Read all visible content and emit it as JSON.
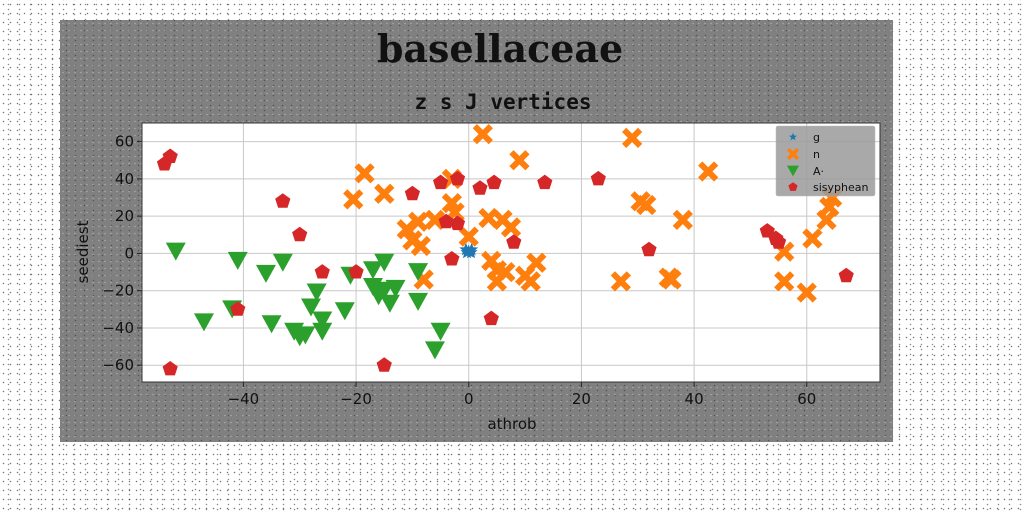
{
  "chart_data": {
    "type": "scatter",
    "suptitle": "basellaceae",
    "title": "z s J vertices",
    "xlabel": "athrob",
    "ylabel": "seediest",
    "xlim": [
      -58,
      73
    ],
    "ylim": [
      -69,
      70
    ],
    "xticks": [
      -40,
      -20,
      0,
      20,
      40,
      60
    ],
    "yticks": [
      -60,
      -40,
      -20,
      0,
      20,
      40,
      60
    ],
    "grid": true,
    "legend_position": "upper right",
    "series": [
      {
        "name": "g",
        "marker": "star",
        "color": "#1f77b4",
        "points": [
          [
            -0.5,
            2
          ],
          [
            0,
            1
          ],
          [
            0.5,
            2
          ],
          [
            -0.3,
            0.5
          ],
          [
            0.4,
            0.5
          ]
        ]
      },
      {
        "name": "n",
        "marker": "x",
        "color": "#ff7f0e",
        "points": [
          [
            -20.5,
            29
          ],
          [
            -18.5,
            43
          ],
          [
            -15,
            32
          ],
          [
            -11,
            13
          ],
          [
            -10,
            7
          ],
          [
            -9,
            17
          ],
          [
            -8.5,
            4
          ],
          [
            -8,
            -14
          ],
          [
            -6,
            18
          ],
          [
            -3,
            27
          ],
          [
            -3,
            40
          ],
          [
            -2.5,
            22
          ],
          [
            0,
            9
          ],
          [
            2.5,
            64
          ],
          [
            3.5,
            19
          ],
          [
            4,
            -4
          ],
          [
            5,
            -9
          ],
          [
            5,
            -15
          ],
          [
            6,
            18
          ],
          [
            6.5,
            -10
          ],
          [
            7.5,
            14
          ],
          [
            9,
            50
          ],
          [
            10,
            -12
          ],
          [
            11,
            -15
          ],
          [
            12,
            -5
          ],
          [
            27,
            -15
          ],
          [
            29,
            62
          ],
          [
            30.5,
            28
          ],
          [
            31.5,
            26
          ],
          [
            35.5,
            -13
          ],
          [
            36,
            -14
          ],
          [
            38,
            18
          ],
          [
            42.5,
            44
          ],
          [
            56,
            1
          ],
          [
            56,
            -15
          ],
          [
            60,
            -21
          ],
          [
            61,
            8
          ],
          [
            63.5,
            18
          ],
          [
            64,
            25
          ],
          [
            64.5,
            30
          ]
        ]
      },
      {
        "name": "A·",
        "marker": "triangle_down",
        "color": "#2ca02c",
        "points": [
          [
            -52,
            1
          ],
          [
            -47,
            -37
          ],
          [
            -42,
            -30
          ],
          [
            -41,
            -4
          ],
          [
            -35,
            -38
          ],
          [
            -36,
            -11
          ],
          [
            -33,
            -5
          ],
          [
            -31,
            -42
          ],
          [
            -30,
            -45
          ],
          [
            -29,
            -44
          ],
          [
            -28,
            -29
          ],
          [
            -27,
            -21
          ],
          [
            -26,
            -36
          ],
          [
            -26,
            -42
          ],
          [
            -22,
            -31
          ],
          [
            -21,
            -12
          ],
          [
            -17,
            -9
          ],
          [
            -17,
            -18
          ],
          [
            -16,
            -23
          ],
          [
            -15,
            -5
          ],
          [
            -15,
            -20
          ],
          [
            -14,
            -27
          ],
          [
            -13,
            -19
          ],
          [
            -9,
            -10
          ],
          [
            -9,
            -26
          ],
          [
            -6,
            -52
          ],
          [
            -5,
            -42
          ]
        ]
      },
      {
        "name": "sisyphean",
        "marker": "pentagon",
        "color": "#d62728",
        "points": [
          [
            -54,
            48
          ],
          [
            -53,
            52
          ],
          [
            -53,
            -62
          ],
          [
            -41,
            -30
          ],
          [
            -33,
            28
          ],
          [
            -30,
            10
          ],
          [
            -26,
            -10
          ],
          [
            -20,
            -10
          ],
          [
            -15,
            -60
          ],
          [
            -10,
            32
          ],
          [
            -5,
            38
          ],
          [
            -4,
            17
          ],
          [
            -3,
            -3
          ],
          [
            -2,
            16
          ],
          [
            -2,
            40
          ],
          [
            2,
            35
          ],
          [
            4,
            -35
          ],
          [
            4.5,
            38
          ],
          [
            8,
            6
          ],
          [
            13.5,
            38
          ],
          [
            23,
            40
          ],
          [
            32,
            2
          ],
          [
            53,
            12
          ],
          [
            55,
            6
          ],
          [
            54.5,
            8
          ],
          [
            67,
            -12
          ]
        ]
      }
    ]
  }
}
